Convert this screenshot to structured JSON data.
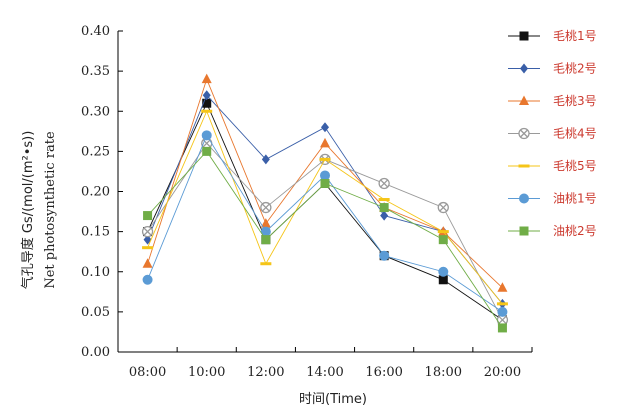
{
  "chart_data": {
    "type": "line",
    "categories": [
      "08:00",
      "10:00",
      "12:00",
      "14:00",
      "16:00",
      "18:00",
      "20:00"
    ],
    "xlabel": "时间(Time)",
    "ylabel_cn": "气孔导度 Gs/(mol/(m²•s))",
    "ylabel_en": "Net photosynthetic rate",
    "ylim": [
      0,
      0.4
    ],
    "yticks": [
      "0.00",
      "0.05",
      "0.10",
      "0.15",
      "0.20",
      "0.25",
      "0.30",
      "0.35",
      "0.40"
    ],
    "grid": false,
    "legend_position": "right",
    "series": [
      {
        "name": "毛桃1号",
        "color": "#111111",
        "marker": "square-icon",
        "values": [
          0.15,
          0.31,
          0.14,
          0.21,
          0.12,
          0.09,
          0.04
        ]
      },
      {
        "name": "毛桃2号",
        "color": "#3a5fa8",
        "marker": "diamond-icon",
        "values": [
          0.14,
          0.32,
          0.24,
          0.28,
          0.17,
          0.15,
          0.06
        ]
      },
      {
        "name": "毛桃3号",
        "color": "#e8772e",
        "marker": "triangle-icon",
        "values": [
          0.11,
          0.34,
          0.16,
          0.26,
          0.18,
          0.15,
          0.08
        ]
      },
      {
        "name": "毛桃4号",
        "color": "#9a9a9a",
        "marker": "circle-x-icon",
        "values": [
          0.15,
          0.26,
          0.18,
          0.24,
          0.21,
          0.18,
          0.04
        ]
      },
      {
        "name": "毛桃5号",
        "color": "#f5c518",
        "marker": "dash-icon",
        "values": [
          0.13,
          0.3,
          0.11,
          0.24,
          0.19,
          0.15,
          0.06
        ]
      },
      {
        "name": "油桃1号",
        "color": "#5b9bd5",
        "marker": "circle-icon",
        "values": [
          0.09,
          0.27,
          0.15,
          0.22,
          0.12,
          0.1,
          0.05
        ]
      },
      {
        "name": "油桃2号",
        "color": "#70ad47",
        "marker": "square-icon",
        "values": [
          0.17,
          0.25,
          0.14,
          0.21,
          0.18,
          0.14,
          0.03
        ]
      }
    ]
  }
}
